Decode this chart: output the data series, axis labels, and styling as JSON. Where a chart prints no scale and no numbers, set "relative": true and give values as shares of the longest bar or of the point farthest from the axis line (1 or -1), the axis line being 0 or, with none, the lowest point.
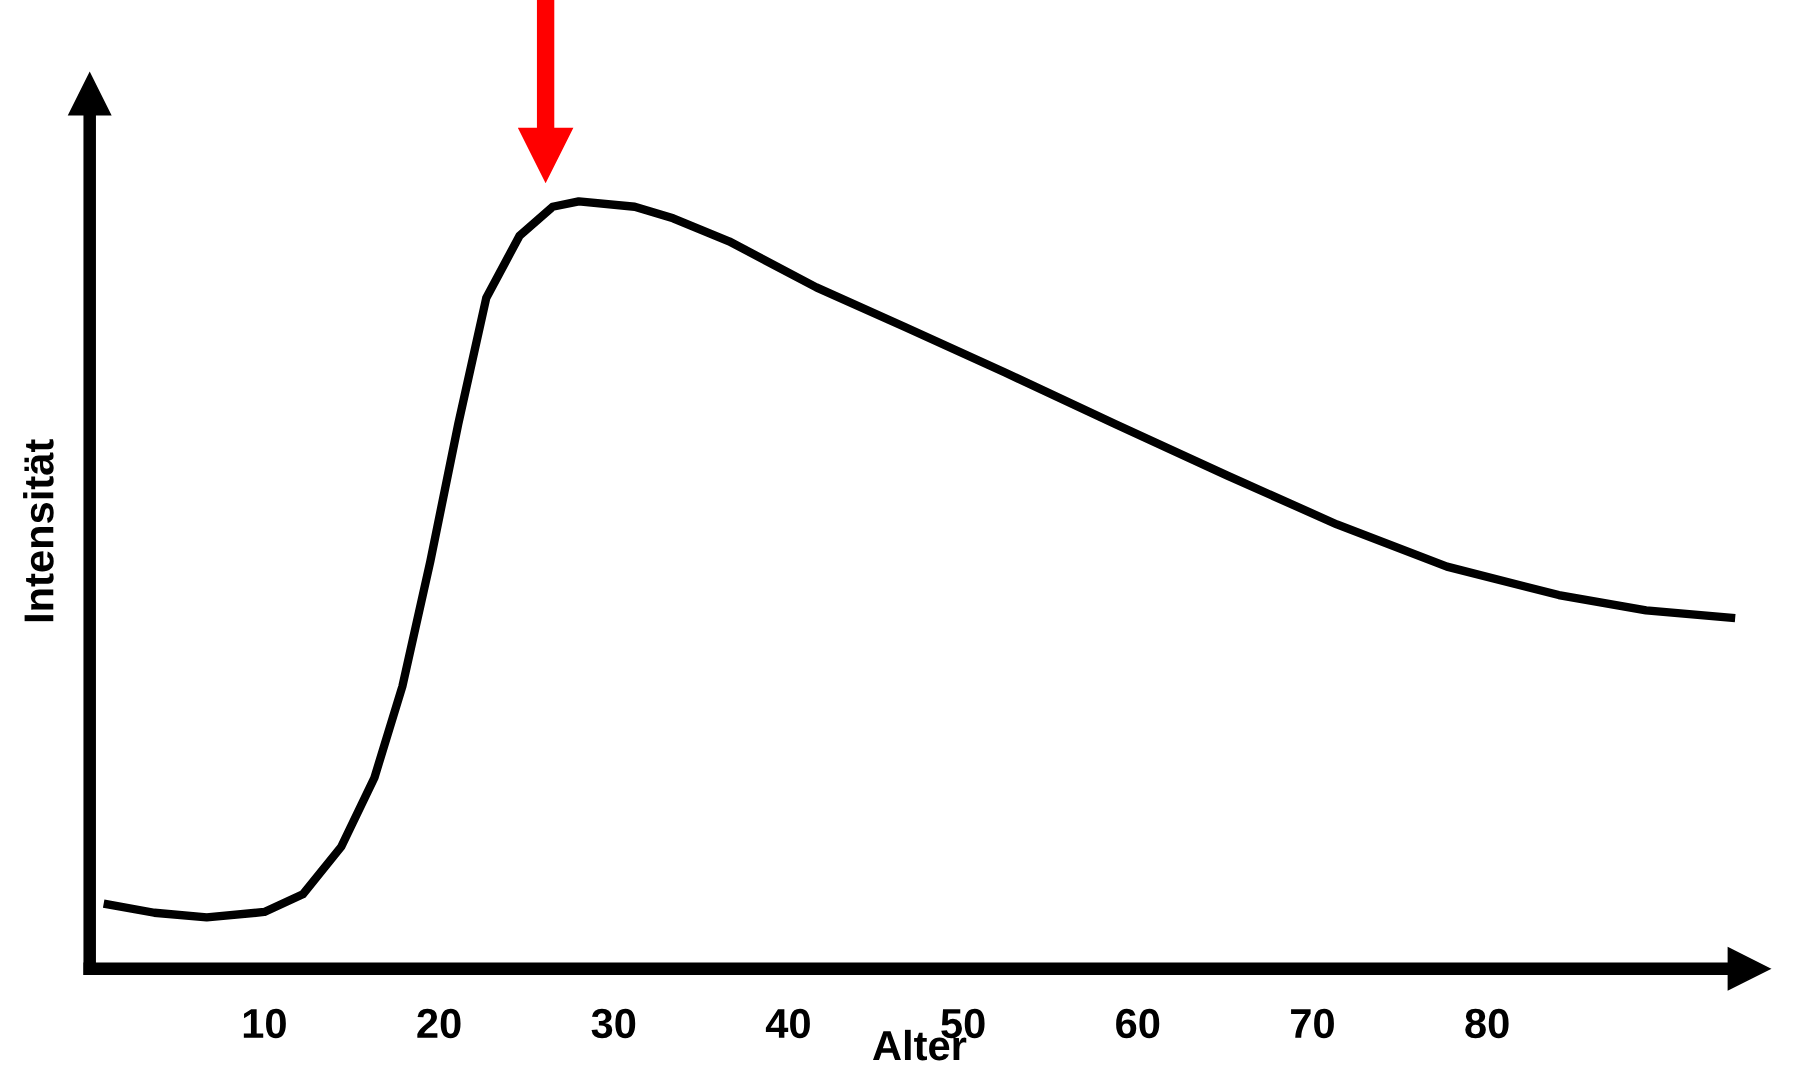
{
  "chart_data": {
    "type": "line",
    "relative": true,
    "xlabel": "Alter",
    "ylabel": "Intensität",
    "xlim": [
      0,
      95
    ],
    "xticks": [
      10,
      20,
      30,
      40,
      50,
      60,
      70,
      80
    ],
    "grid": false,
    "legend": false,
    "marker": "none",
    "line_style": "solid",
    "series": [
      {
        "color": "#000000",
        "x": [
          0.8,
          3.7,
          6.7,
          10,
          12.2,
          14.4,
          16.3,
          17.9,
          19.5,
          21.1,
          22.7,
          24.6,
          26.5,
          28.0,
          31.2,
          33.4,
          36.6,
          41.6,
          46.7,
          52.4,
          58.7,
          65.1,
          71.4,
          77.7,
          84.1,
          89.1,
          94.2
        ],
        "values": [
          0.085,
          0.073,
          0.067,
          0.074,
          0.097,
          0.159,
          0.249,
          0.368,
          0.531,
          0.71,
          0.874,
          0.955,
          0.993,
          1.0,
          0.993,
          0.978,
          0.948,
          0.888,
          0.836,
          0.777,
          0.71,
          0.643,
          0.579,
          0.524,
          0.487,
          0.467,
          0.457
        ]
      }
    ]
  }
}
